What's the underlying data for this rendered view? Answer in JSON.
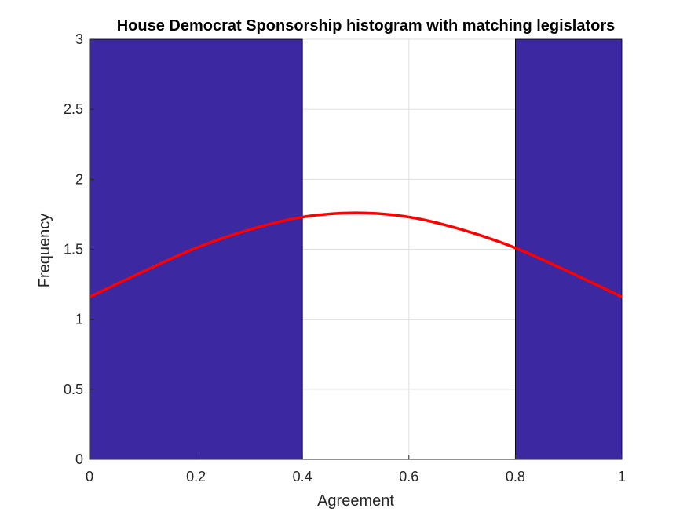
{
  "chart_data": {
    "type": "bar",
    "title": "House Democrat Sponsorship histogram with matching legislators",
    "xlabel": "Agreement",
    "ylabel": "Frequency",
    "xlim": [
      0,
      1
    ],
    "ylim": [
      0,
      3
    ],
    "grid": true,
    "xticks": [
      0,
      0.2,
      0.4,
      0.6,
      0.8,
      1
    ],
    "xtick_labels": [
      "0",
      "0.2",
      "0.4",
      "0.6",
      "0.8",
      "1"
    ],
    "yticks": [
      0,
      0.5,
      1,
      1.5,
      2,
      2.5,
      3
    ],
    "ytick_labels": [
      "0",
      "0.5",
      "1",
      "1.5",
      "2",
      "2.5",
      "3"
    ],
    "bins": [
      {
        "start": 0.0,
        "end": 0.4,
        "count": 3
      },
      {
        "start": 0.4,
        "end": 0.8,
        "count": 0
      },
      {
        "start": 0.8,
        "end": 1.0,
        "count": 3
      }
    ],
    "bar_color": "#3C28A0",
    "fit_curve": {
      "color": "#FF0000",
      "x": [
        0,
        0.1,
        0.2,
        0.3,
        0.4,
        0.5,
        0.6,
        0.7,
        0.8,
        0.9,
        1.0
      ],
      "y": [
        1.16,
        1.34,
        1.51,
        1.64,
        1.73,
        1.76,
        1.73,
        1.64,
        1.51,
        1.34,
        1.16
      ]
    }
  }
}
